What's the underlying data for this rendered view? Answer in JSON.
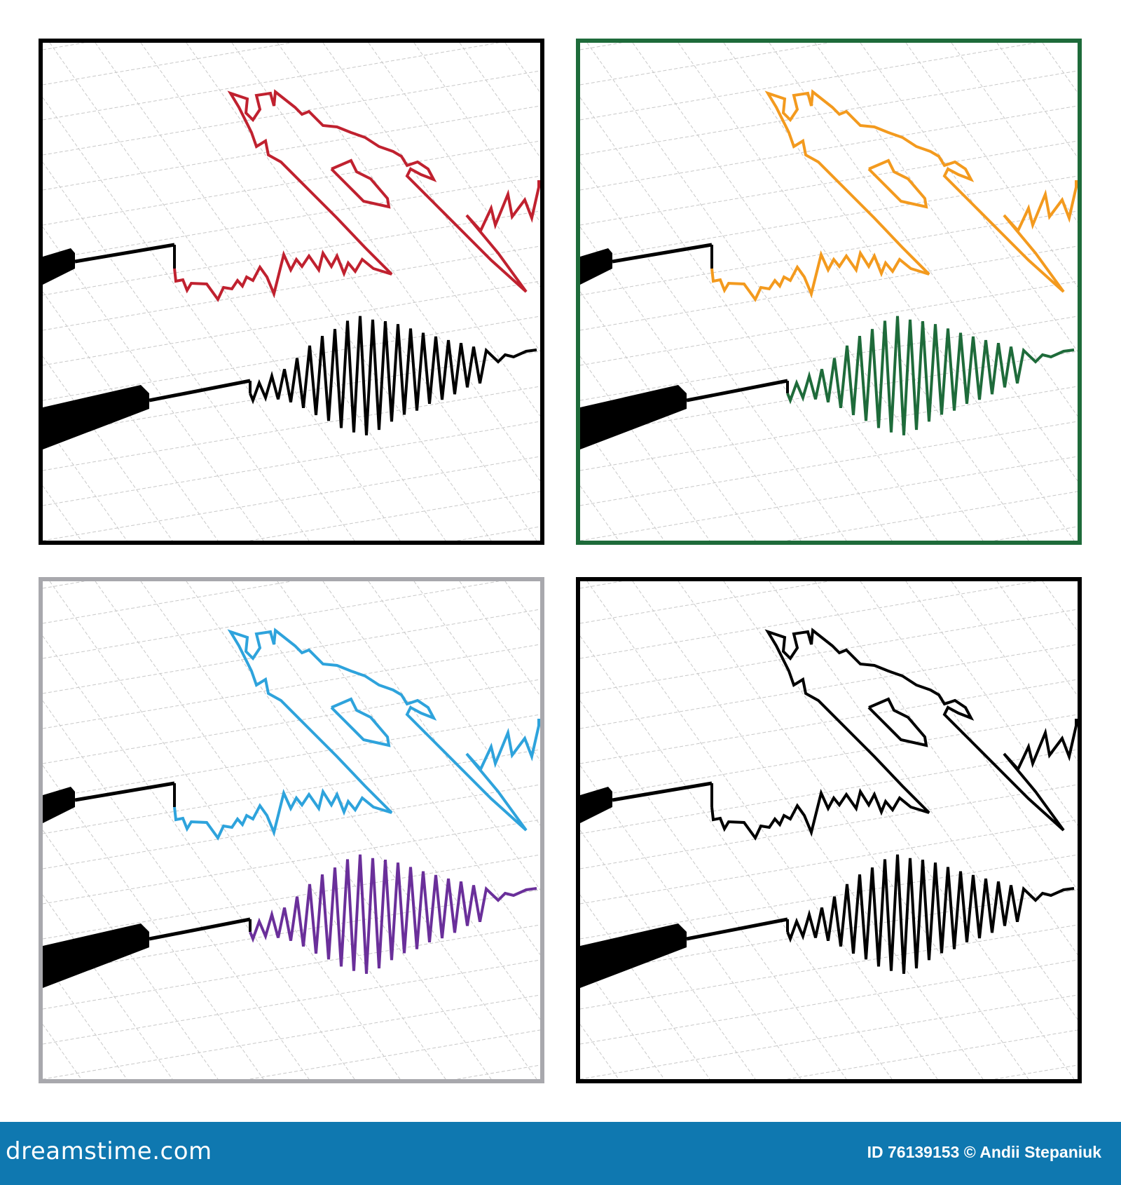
{
  "panels": [
    {
      "frame_color": "#000000",
      "upper_trace_color": "#c0212f",
      "lower_trace_color": "#000000"
    },
    {
      "frame_color": "#1e6b3a",
      "upper_trace_color": "#f39a1e",
      "lower_trace_color": "#1e6b3a"
    },
    {
      "frame_color": "#a8a8ad",
      "upper_trace_color": "#2ea3dc",
      "lower_trace_color": "#6a2f9a"
    },
    {
      "frame_color": "#000000",
      "upper_trace_color": "#000000",
      "lower_trace_color": "#000000"
    }
  ],
  "footer": {
    "brand": "dreamstime.com",
    "credit": "ID 76139153 © Andii Stepaniuk",
    "background": "#0f78b0"
  }
}
